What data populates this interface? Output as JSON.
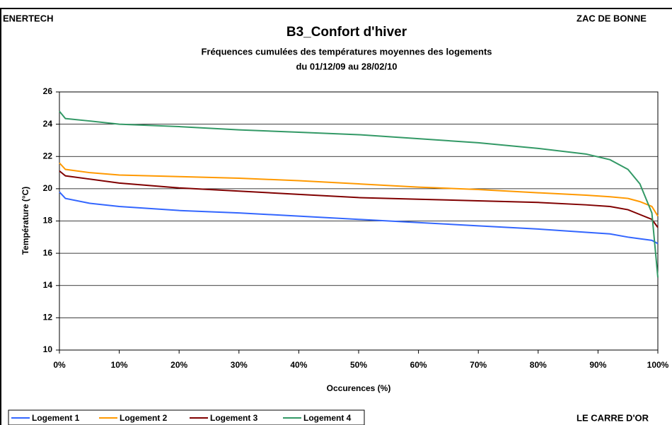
{
  "header": {
    "left": "ENERTECH",
    "right": "ZAC DE BONNE"
  },
  "footer": {
    "right": "LE CARRE D'OR"
  },
  "chart_data": {
    "type": "line",
    "title": "B3_Confort d'hiver",
    "subtitle": [
      "Fréquences cumulées des températures moyennes des logements",
      "du 01/12/09 au 28/02/10"
    ],
    "x_label": "Occurences (%)",
    "y_label": "Température (°C)",
    "x": [
      0,
      1,
      5,
      10,
      20,
      30,
      40,
      50,
      60,
      70,
      80,
      88,
      92,
      95,
      97,
      99,
      100
    ],
    "series": [
      {
        "name": "Logement 1",
        "color": "#3366ff",
        "values": [
          19.8,
          19.4,
          19.1,
          18.9,
          18.65,
          18.5,
          18.3,
          18.1,
          17.9,
          17.7,
          17.5,
          17.3,
          17.2,
          17.0,
          16.9,
          16.8,
          16.6
        ]
      },
      {
        "name": "Logement 2",
        "color": "#ff9900",
        "values": [
          21.6,
          21.2,
          21.0,
          20.85,
          20.75,
          20.65,
          20.5,
          20.3,
          20.1,
          19.95,
          19.75,
          19.6,
          19.5,
          19.4,
          19.2,
          18.9,
          18.3
        ]
      },
      {
        "name": "Logement 3",
        "color": "#800000",
        "values": [
          21.1,
          20.8,
          20.6,
          20.35,
          20.05,
          19.85,
          19.65,
          19.45,
          19.35,
          19.25,
          19.15,
          19.0,
          18.9,
          18.7,
          18.4,
          18.1,
          17.6
        ]
      },
      {
        "name": "Logement 4",
        "color": "#339966",
        "values": [
          24.8,
          24.35,
          24.2,
          24.0,
          23.85,
          23.65,
          23.5,
          23.35,
          23.1,
          22.85,
          22.5,
          22.15,
          21.8,
          21.2,
          20.3,
          18.5,
          14.5
        ]
      }
    ],
    "xlim": [
      0,
      100
    ],
    "xticks": [
      {
        "value": 0,
        "label": "0%"
      },
      {
        "value": 10,
        "label": "10%"
      },
      {
        "value": 20,
        "label": "20%"
      },
      {
        "value": 30,
        "label": "30%"
      },
      {
        "value": 40,
        "label": "40%"
      },
      {
        "value": 50,
        "label": "50%"
      },
      {
        "value": 60,
        "label": "60%"
      },
      {
        "value": 70,
        "label": "70%"
      },
      {
        "value": 80,
        "label": "80%"
      },
      {
        "value": 90,
        "label": "90%"
      },
      {
        "value": 100,
        "label": "100%"
      }
    ],
    "ylim": [
      10,
      26
    ],
    "yticks": [
      10,
      12,
      14,
      16,
      18,
      20,
      22,
      24,
      26
    ],
    "grid": true,
    "legend": "bottom-left"
  }
}
